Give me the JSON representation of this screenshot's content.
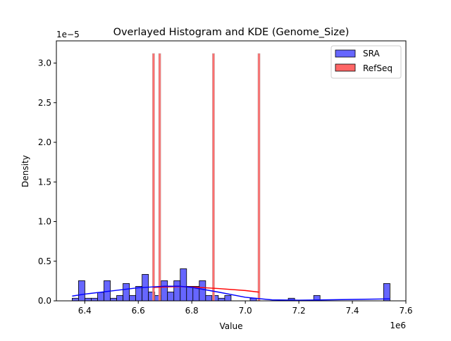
{
  "chart_data": {
    "type": "bar",
    "title": "Overlayed Histogram and KDE (Genome_Size)",
    "xlabel": "Value",
    "ylabel": "Density",
    "x_offset_label": "1e6",
    "y_offset_label": "1e−5",
    "xlim": [
      6.294,
      7.6
    ],
    "ylim": [
      0,
      3.28
    ],
    "x_ticks": [
      6.4,
      6.6,
      6.8,
      7.0,
      7.2,
      7.4,
      7.6
    ],
    "x_tick_labels": [
      "6.4",
      "6.6",
      "6.8",
      "7.0",
      "7.2",
      "7.4",
      "7.6"
    ],
    "y_ticks": [
      0,
      0.5,
      1.0,
      1.5,
      2.0,
      2.5,
      3.0
    ],
    "y_tick_labels": [
      "0.0",
      "0.5",
      "1.0",
      "1.5",
      "2.0",
      "2.5",
      "3.0"
    ],
    "grid": false,
    "legend": {
      "placement": "top-right",
      "entries": [
        "SRA",
        "RefSeq"
      ]
    },
    "colors": {
      "SRA_fill": "#6666ff",
      "SRA_line": "#0000ff",
      "RefSeq_fill": "#ff6666",
      "RefSeq_line": "#ff0000"
    },
    "series": [
      {
        "name": "SRA",
        "kind": "histogram",
        "bin_start": 6.353,
        "bin_width": 0.02375,
        "densities": [
          0.033,
          0.254,
          0.033,
          0.033,
          0.107,
          0.254,
          0.033,
          0.068,
          0.219,
          0.068,
          0.183,
          0.334,
          0.112,
          0.068,
          0.254,
          0.112,
          0.254,
          0.405,
          0.183,
          0.183,
          0.254,
          0.068,
          0.068,
          0.033,
          0.068,
          0,
          0,
          0,
          0.033,
          0,
          0,
          0,
          0,
          0,
          0.033,
          0,
          0,
          0,
          0.068,
          0,
          0,
          0,
          0,
          0,
          0,
          0,
          0,
          0,
          0,
          0.219
        ],
        "kde": {
          "x": [
            6.353,
            6.4,
            6.5,
            6.6,
            6.7,
            6.75,
            6.8,
            6.9,
            7.0,
            7.1,
            7.2,
            7.3,
            7.4,
            7.541
          ],
          "y": [
            0.06,
            0.085,
            0.125,
            0.165,
            0.185,
            0.185,
            0.17,
            0.11,
            0.045,
            0.012,
            0.008,
            0.012,
            0.018,
            0.025
          ]
        }
      },
      {
        "name": "RefSeq",
        "kind": "histogram",
        "values": [
          6.657,
          6.68,
          6.881,
          7.051
        ],
        "bar_width": 0.0079,
        "densities": [
          3.12,
          3.12,
          3.12,
          3.12
        ],
        "kde": {
          "x": [
            6.657,
            6.7,
            6.75,
            6.8,
            6.9,
            7.0,
            7.051
          ],
          "y": [
            0.17,
            0.175,
            0.18,
            0.175,
            0.155,
            0.13,
            0.11
          ]
        }
      }
    ]
  }
}
